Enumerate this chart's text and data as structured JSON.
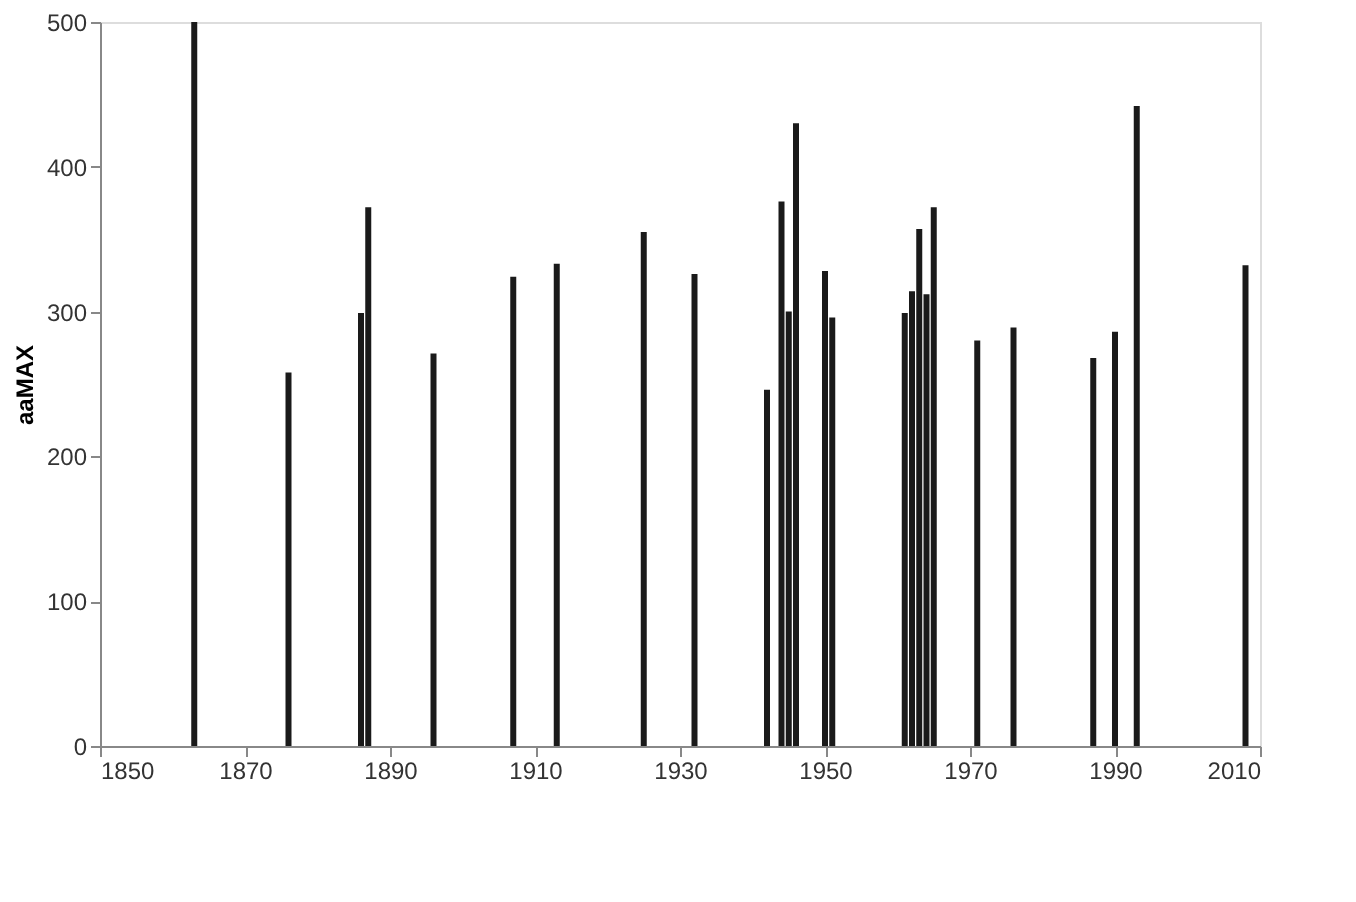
{
  "chart_data": {
    "type": "bar",
    "ylabel": "aaMAX",
    "x": [
      1863,
      1876,
      1886,
      1887,
      1896,
      1907,
      1913,
      1925,
      1932,
      1942,
      1944,
      1945,
      1946,
      1950,
      1951,
      1961,
      1962,
      1963,
      1964,
      1965,
      1971,
      1976,
      1987,
      1990,
      1993,
      2008
    ],
    "values": [
      500,
      258,
      299,
      372,
      271,
      324,
      333,
      355,
      326,
      246,
      376,
      300,
      430,
      328,
      296,
      299,
      314,
      357,
      312,
      372,
      280,
      289,
      268,
      286,
      442,
      332
    ],
    "color": "#1a1a1a",
    "xlim": [
      1850,
      2010
    ],
    "xticks": [
      1850,
      1870,
      1890,
      1910,
      1930,
      1950,
      1970,
      1990,
      2010
    ],
    "ylim": [
      0,
      500
    ],
    "yticks": [
      0,
      100,
      200,
      300,
      400,
      500
    ],
    "grid": false
  }
}
